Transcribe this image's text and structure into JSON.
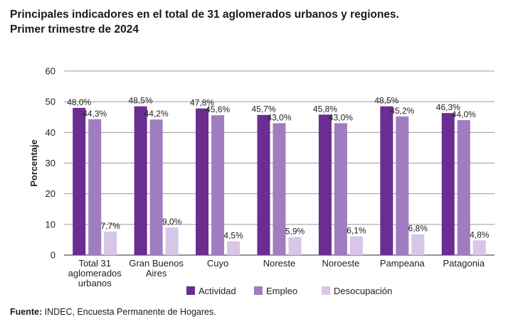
{
  "title_line1": "Principales indicadores en el total de 31 aglomerados urbanos y regiones.",
  "title_line2": "Primer trimestre de 2024",
  "footer_label": "Fuente:",
  "footer_text": " INDEC, Encuesta Permanente de Hogares.",
  "chart_data": {
    "type": "bar",
    "title": "Principales indicadores en el total de 31 aglomerados urbanos y regiones. Primer trimestre de 2024",
    "xlabel": "",
    "ylabel": "Porcentaje",
    "ylim": [
      0,
      60
    ],
    "yticks": [
      0,
      10,
      20,
      30,
      40,
      50,
      60
    ],
    "grid": true,
    "legend_position": "bottom",
    "categories": [
      [
        "Total 31",
        "aglomerados",
        "urbanos"
      ],
      [
        "Gran Buenos",
        "Aires"
      ],
      [
        "Cuyo"
      ],
      [
        "Noreste"
      ],
      [
        "Noroeste"
      ],
      [
        "Pampeana"
      ],
      [
        "Patagonia"
      ]
    ],
    "series": [
      {
        "name": "Actividad",
        "color": "#6b2d91",
        "values": [
          48.0,
          48.5,
          47.8,
          45.7,
          45.8,
          48.5,
          46.3
        ],
        "labels": [
          "48,0%",
          "48,5%",
          "47,8%",
          "45,7%",
          "45,8%",
          "48,5%",
          "46,3%"
        ]
      },
      {
        "name": "Empleo",
        "color": "#a07cc0",
        "values": [
          44.3,
          44.2,
          45.6,
          43.0,
          43.0,
          45.2,
          44.0
        ],
        "labels": [
          "44,3%",
          "44,2%",
          "45,6%",
          "43,0%",
          "43,0%",
          "45,2%",
          "44,0%"
        ]
      },
      {
        "name": "Desocupación",
        "color": "#d8c6e6",
        "values": [
          7.7,
          9.0,
          4.5,
          5.9,
          6.1,
          6.8,
          4.8
        ],
        "labels": [
          "7,7%",
          "9,0%",
          "4,5%",
          "5,9%",
          "6,1%",
          "6,8%",
          "4,8%"
        ]
      }
    ]
  }
}
